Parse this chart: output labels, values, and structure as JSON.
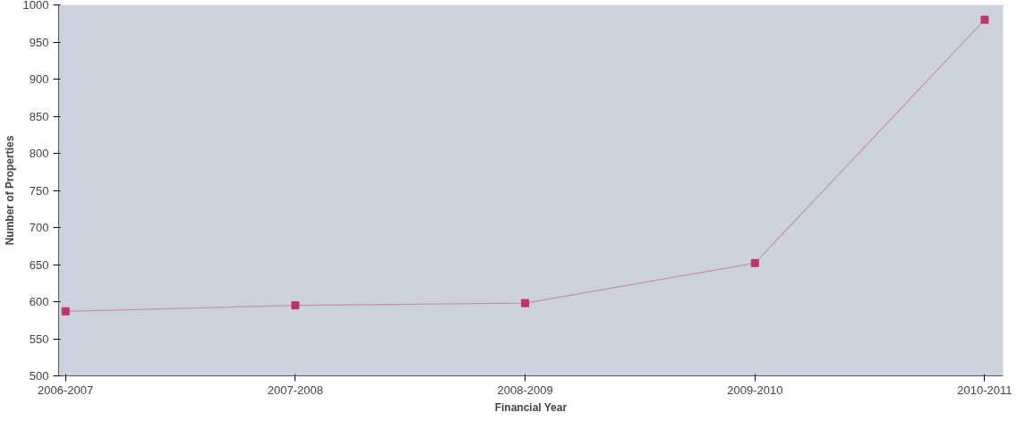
{
  "chart_data": {
    "type": "line",
    "xlabel": "Financial Year",
    "ylabel": "Number of Properties",
    "categories": [
      "2006-2007",
      "2007-2008",
      "2008-2009",
      "2009-2010",
      "2010-2011"
    ],
    "series": [
      {
        "color": "#c2306e",
        "values": [
          587,
          595,
          598,
          652,
          980
        ]
      }
    ],
    "ylim": [
      500,
      1000
    ],
    "yticks": [
      500,
      550,
      600,
      650,
      700,
      750,
      800,
      850,
      900,
      950,
      1000
    ],
    "grid": false,
    "marker": "square",
    "line_style": "solid"
  }
}
